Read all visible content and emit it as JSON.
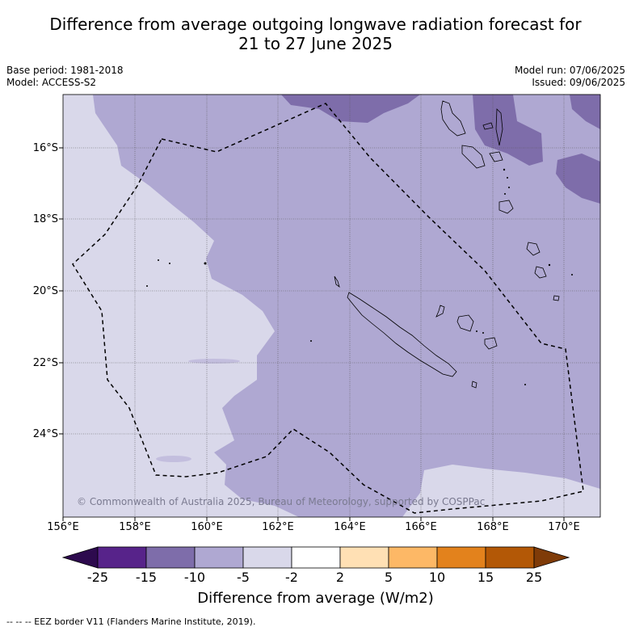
{
  "title_line1": "Difference from average outgoing longwave radiation forecast for",
  "title_line2": "21 to 27 June 2025",
  "meta": {
    "base_period": "Base period: 1981-2018",
    "model": "Model: ACCESS-S2",
    "model_run": "Model run: 07/06/2025",
    "issued": "Issued: 09/06/2025"
  },
  "map": {
    "lon_labels": [
      "156°E",
      "158°E",
      "160°E",
      "162°E",
      "164°E",
      "166°E",
      "168°E",
      "170°E"
    ],
    "lat_labels": [
      "16°S",
      "18°S",
      "20°S",
      "22°S",
      "24°S"
    ],
    "copyright": "© Commonwealth of Australia 2025, Bureau of Meteorology, supported by COSPPac"
  },
  "colorbar": {
    "ticks": [
      "-25",
      "-15",
      "-10",
      "-5",
      "-2",
      "2",
      "5",
      "10",
      "15",
      "25"
    ],
    "colors": [
      "#2d0a4e",
      "#57238a",
      "#7e6daa",
      "#afa8d2",
      "#d9d8ea",
      "#ffffff",
      "#ffe0b4",
      "#fdb866",
      "#e3821c",
      "#b35806",
      "#7f3b08"
    ],
    "label": "Difference from average (W/m2)"
  },
  "footnote": "--  --  -- EEZ border V11 (Flanders Marine Institute, 2019)."
}
